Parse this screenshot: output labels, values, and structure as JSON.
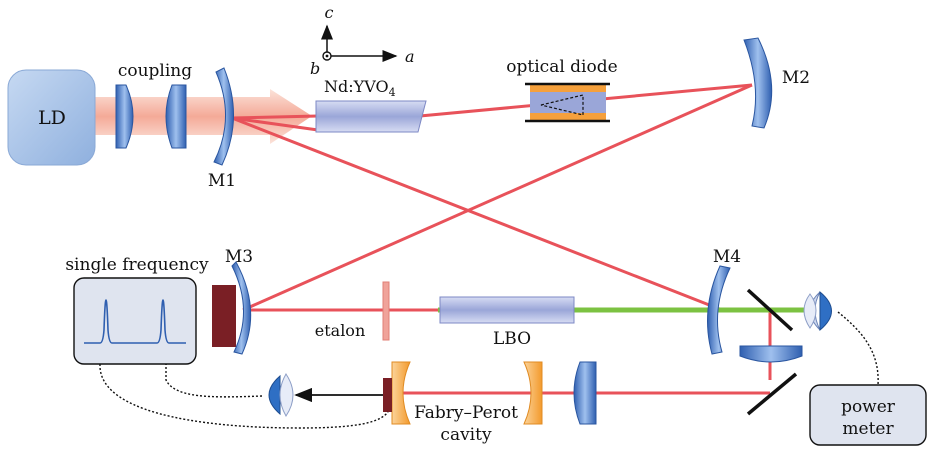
{
  "labels": {
    "ld": "LD",
    "coupling": "coupling",
    "m1": "M1",
    "crystal_prefix": "Nd:YVO",
    "crystal_sub": "4",
    "axis_c": "c",
    "axis_a": "a",
    "axis_b": "b",
    "optical_diode": "optical diode",
    "m2": "M2",
    "m3": "M3",
    "m4": "M4",
    "single_frequency": "single frequency",
    "etalon": "etalon",
    "lbo": "LBO",
    "fp_line1": "Fabry–Perot",
    "fp_line2": "cavity",
    "power_line1": "power",
    "power_line2": "meter"
  },
  "colors": {
    "laser_red": "#e8525a",
    "pump_pink": "#f4b8a8",
    "green_beam": "#7cc242",
    "optic_blue": "#4a78c0",
    "ld_box": "#a9c4e8",
    "orange_mirror": "#f5a03c",
    "dark_red": "#7a1f25"
  }
}
